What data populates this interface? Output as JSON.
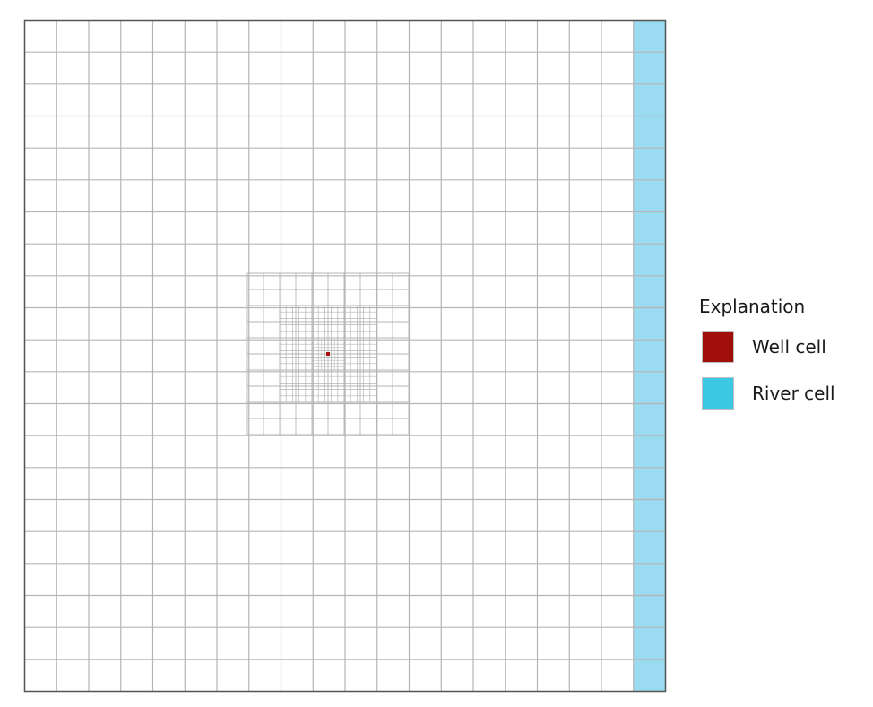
{
  "legend": {
    "title": "Explanation",
    "items": [
      {
        "label": "Well cell",
        "color": "#a00f0a"
      },
      {
        "label": "River cell",
        "color": "#3ac8e3"
      }
    ]
  },
  "colors": {
    "grid_line": "#b5b5b5",
    "border": "#555555",
    "river_column": "#9adbf1",
    "well": "#a00f0a"
  }
}
